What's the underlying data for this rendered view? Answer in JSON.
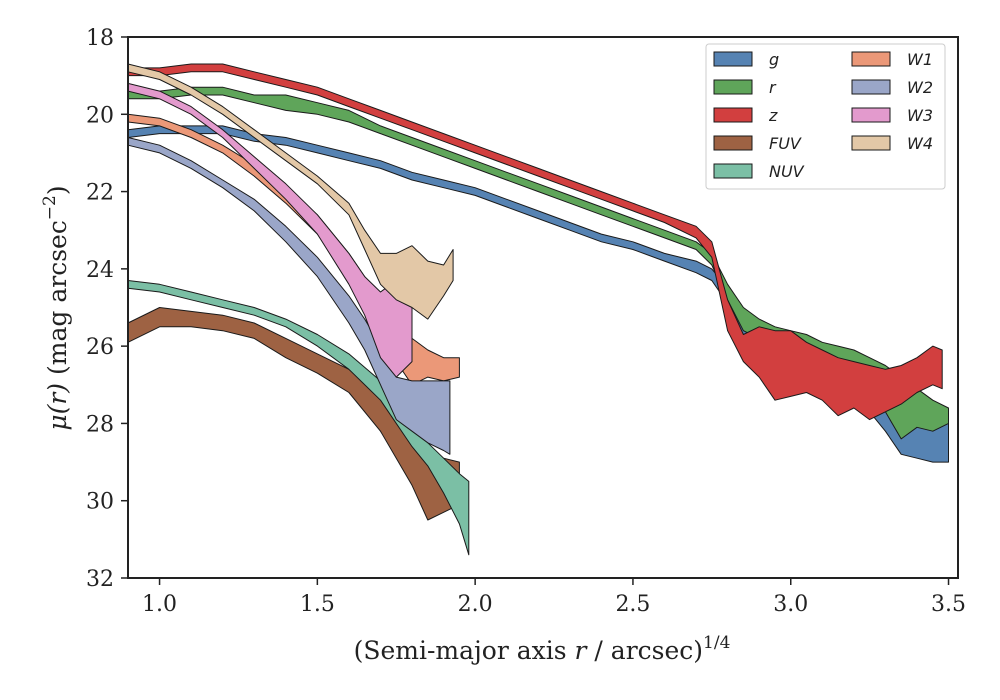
{
  "chart_data": {
    "type": "area",
    "xlabel": {
      "pre": "(Semi-major axis ",
      "italic": "r",
      "post": " / arcsec)",
      "sup": "1/4"
    },
    "ylabel": {
      "italic": "μ(r)",
      "post": " (mag arcsec",
      "sup": "−2",
      "end": ")"
    },
    "xlim": [
      0.9,
      3.53
    ],
    "ylim": [
      32,
      18
    ],
    "y_inverted": true,
    "x_ticks": [
      1.0,
      1.5,
      2.0,
      2.5,
      3.0,
      3.5
    ],
    "x_tick_labels": [
      "1.0",
      "1.5",
      "2.0",
      "2.5",
      "3.0",
      "3.5"
    ],
    "y_ticks": [
      18,
      20,
      22,
      24,
      26,
      28,
      30,
      32
    ],
    "y_tick_labels": [
      "18",
      "20",
      "22",
      "24",
      "26",
      "28",
      "30",
      "32"
    ],
    "grid": false,
    "legend_position": "top-right",
    "legend_columns": 2,
    "series": [
      {
        "name": "g",
        "color": "#5683b3",
        "x": [
          0.9,
          1.0,
          1.1,
          1.2,
          1.3,
          1.4,
          1.5,
          1.6,
          1.7,
          1.8,
          1.9,
          2.0,
          2.1,
          2.2,
          2.3,
          2.4,
          2.5,
          2.6,
          2.7,
          2.75,
          2.8,
          2.85,
          2.9,
          2.95,
          3.0,
          3.05,
          3.1,
          3.15,
          3.2,
          3.25,
          3.3,
          3.35,
          3.4,
          3.45,
          3.5
        ],
        "y_upper": [
          20.4,
          20.3,
          20.3,
          20.3,
          20.5,
          20.6,
          20.8,
          21.0,
          21.2,
          21.5,
          21.7,
          21.9,
          22.2,
          22.5,
          22.8,
          23.1,
          23.3,
          23.6,
          23.8,
          24.0,
          24.5,
          25.2,
          25.6,
          26.0,
          26.2,
          26.3,
          26.4,
          26.5,
          26.6,
          26.8,
          27.0,
          27.3,
          27.6,
          27.8,
          28.0
        ],
        "y_lower": [
          20.6,
          20.5,
          20.5,
          20.5,
          20.7,
          20.8,
          21.0,
          21.2,
          21.4,
          21.7,
          21.9,
          22.1,
          22.4,
          22.7,
          23.0,
          23.3,
          23.5,
          23.8,
          24.1,
          24.3,
          24.9,
          25.8,
          26.2,
          26.6,
          26.8,
          26.9,
          27.0,
          27.2,
          27.4,
          27.7,
          28.2,
          28.8,
          28.9,
          29.0,
          29.0
        ]
      },
      {
        "name": "r",
        "color": "#5fa55a",
        "x": [
          0.9,
          1.0,
          1.1,
          1.2,
          1.3,
          1.4,
          1.5,
          1.6,
          1.7,
          1.8,
          1.9,
          2.0,
          2.1,
          2.2,
          2.3,
          2.4,
          2.5,
          2.6,
          2.7,
          2.75,
          2.8,
          2.85,
          2.9,
          2.95,
          3.0,
          3.05,
          3.1,
          3.15,
          3.2,
          3.25,
          3.3,
          3.35,
          3.4,
          3.45,
          3.5
        ],
        "y_upper": [
          19.4,
          19.4,
          19.3,
          19.3,
          19.5,
          19.5,
          19.7,
          19.9,
          20.3,
          20.6,
          20.9,
          21.2,
          21.5,
          21.8,
          22.1,
          22.4,
          22.7,
          23.0,
          23.3,
          23.6,
          24.4,
          25.0,
          25.3,
          25.5,
          25.6,
          25.7,
          25.9,
          26.0,
          26.1,
          26.3,
          26.5,
          26.8,
          27.1,
          27.4,
          27.6
        ],
        "y_lower": [
          19.6,
          19.6,
          19.5,
          19.5,
          19.7,
          19.9,
          20.0,
          20.2,
          20.5,
          20.8,
          21.1,
          21.4,
          21.7,
          22.0,
          22.3,
          22.6,
          22.9,
          23.2,
          23.5,
          23.9,
          24.8,
          25.6,
          25.8,
          26.0,
          26.1,
          26.2,
          26.4,
          26.6,
          26.8,
          27.1,
          27.7,
          28.4,
          28.1,
          28.2,
          28.0
        ]
      },
      {
        "name": "z",
        "color": "#d23f3f",
        "x": [
          0.9,
          1.0,
          1.1,
          1.2,
          1.3,
          1.4,
          1.5,
          1.6,
          1.7,
          1.8,
          1.9,
          2.0,
          2.1,
          2.2,
          2.3,
          2.4,
          2.5,
          2.6,
          2.7,
          2.75,
          2.8,
          2.85,
          2.9,
          2.95,
          3.0,
          3.05,
          3.1,
          3.15,
          3.2,
          3.25,
          3.3,
          3.35,
          3.4,
          3.45,
          3.48
        ],
        "y_upper": [
          18.8,
          18.8,
          18.7,
          18.7,
          18.9,
          19.1,
          19.3,
          19.6,
          19.9,
          20.2,
          20.5,
          20.8,
          21.1,
          21.4,
          21.7,
          22.0,
          22.3,
          22.6,
          22.9,
          23.3,
          24.8,
          25.7,
          25.5,
          25.6,
          25.6,
          25.9,
          26.1,
          26.3,
          26.4,
          26.5,
          26.6,
          26.5,
          26.3,
          26.0,
          26.1
        ],
        "y_lower": [
          19.0,
          19.0,
          18.9,
          18.9,
          19.1,
          19.3,
          19.5,
          19.8,
          20.1,
          20.4,
          20.7,
          21.0,
          21.3,
          21.6,
          21.9,
          22.2,
          22.5,
          22.8,
          23.2,
          23.7,
          25.6,
          26.4,
          26.8,
          27.4,
          27.3,
          27.2,
          27.4,
          27.8,
          27.6,
          27.9,
          27.7,
          27.5,
          27.2,
          27.0,
          27.1
        ]
      },
      {
        "name": "FUV",
        "color": "#9e6243",
        "x": [
          0.9,
          1.0,
          1.1,
          1.2,
          1.3,
          1.4,
          1.5,
          1.6,
          1.7,
          1.8,
          1.85,
          1.9,
          1.95
        ],
        "y_upper": [
          25.4,
          25.0,
          25.1,
          25.2,
          25.4,
          25.8,
          26.2,
          26.6,
          27.3,
          28.3,
          28.8,
          28.9,
          29.0
        ],
        "y_lower": [
          25.9,
          25.5,
          25.5,
          25.6,
          25.8,
          26.3,
          26.7,
          27.2,
          28.2,
          29.6,
          30.5,
          30.3,
          30.1
        ]
      },
      {
        "name": "NUV",
        "color": "#7bbfa5",
        "x": [
          0.9,
          1.0,
          1.1,
          1.2,
          1.3,
          1.4,
          1.5,
          1.6,
          1.7,
          1.8,
          1.85,
          1.9,
          1.95,
          1.98
        ],
        "y_upper": [
          24.3,
          24.4,
          24.6,
          24.8,
          25.0,
          25.3,
          25.7,
          26.2,
          26.9,
          27.9,
          28.5,
          28.9,
          29.3,
          29.5
        ],
        "y_lower": [
          24.5,
          24.6,
          24.8,
          25.0,
          25.2,
          25.5,
          26.0,
          26.6,
          27.4,
          28.6,
          29.1,
          29.8,
          30.6,
          31.4
        ]
      },
      {
        "name": "W1",
        "color": "#eb9878",
        "x": [
          0.9,
          1.0,
          1.1,
          1.2,
          1.3,
          1.4,
          1.5,
          1.6,
          1.65,
          1.7,
          1.75,
          1.8,
          1.85,
          1.9,
          1.95
        ],
        "y_upper": [
          20.0,
          20.1,
          20.4,
          20.8,
          21.3,
          21.9,
          22.6,
          23.6,
          24.2,
          24.8,
          25.3,
          25.8,
          26.1,
          26.3,
          26.3
        ],
        "y_lower": [
          20.2,
          20.3,
          20.6,
          21.0,
          21.6,
          22.3,
          23.1,
          24.3,
          25.0,
          25.8,
          26.4,
          27.0,
          26.8,
          26.9,
          26.8
        ]
      },
      {
        "name": "W2",
        "color": "#9aa6c8",
        "x": [
          0.9,
          1.0,
          1.1,
          1.2,
          1.3,
          1.4,
          1.5,
          1.6,
          1.65,
          1.7,
          1.75,
          1.8,
          1.85,
          1.9,
          1.92
        ],
        "y_upper": [
          20.6,
          20.8,
          21.2,
          21.7,
          22.2,
          22.9,
          23.7,
          24.7,
          25.3,
          26.0,
          26.8,
          26.9,
          26.9,
          26.9,
          26.9
        ],
        "y_lower": [
          20.8,
          21.0,
          21.4,
          21.9,
          22.5,
          23.3,
          24.2,
          25.4,
          26.1,
          27.0,
          27.9,
          28.2,
          28.5,
          28.7,
          28.8
        ]
      },
      {
        "name": "W3",
        "color": "#e39acd",
        "x": [
          0.9,
          1.0,
          1.1,
          1.2,
          1.3,
          1.4,
          1.5,
          1.6,
          1.65,
          1.7,
          1.75,
          1.8
        ],
        "y_upper": [
          19.2,
          19.4,
          19.8,
          20.4,
          21.1,
          21.8,
          22.6,
          23.6,
          24.2,
          24.6,
          24.3,
          24.9
        ],
        "y_lower": [
          19.4,
          19.6,
          20.0,
          20.6,
          21.4,
          22.2,
          23.1,
          24.4,
          25.2,
          26.3,
          26.8,
          26.4
        ]
      },
      {
        "name": "W4",
        "color": "#e3c8a7",
        "x": [
          0.9,
          1.0,
          1.1,
          1.2,
          1.3,
          1.4,
          1.5,
          1.6,
          1.65,
          1.7,
          1.75,
          1.8,
          1.85,
          1.9,
          1.93
        ],
        "y_upper": [
          18.7,
          18.9,
          19.3,
          19.8,
          20.4,
          21.0,
          21.6,
          22.3,
          23.0,
          23.6,
          23.6,
          23.4,
          23.8,
          23.9,
          23.5
        ],
        "y_lower": [
          18.9,
          19.1,
          19.5,
          20.0,
          20.6,
          21.2,
          21.8,
          22.6,
          23.5,
          24.4,
          24.8,
          25.0,
          25.3,
          24.7,
          24.3
        ]
      }
    ]
  }
}
